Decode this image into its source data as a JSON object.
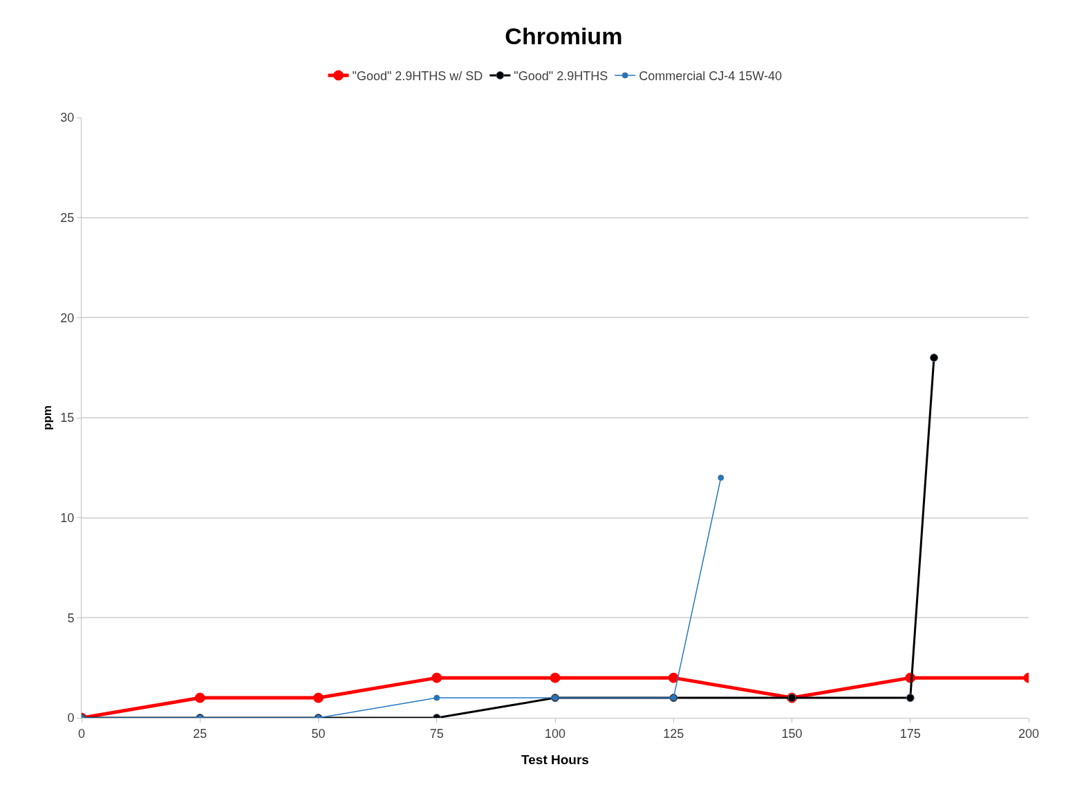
{
  "chart_data": {
    "type": "line",
    "title": "Chromium",
    "xlabel": "Test Hours",
    "ylabel": "ppm",
    "xlim": [
      0,
      200
    ],
    "xticks": [
      0,
      25,
      50,
      75,
      100,
      125,
      150,
      175,
      200
    ],
    "ylim": [
      0,
      30
    ],
    "yticks": [
      0,
      5,
      10,
      15,
      20,
      25,
      30
    ],
    "grid": "y",
    "legend": "top",
    "marker": "circle",
    "line_style": "solid",
    "series": [
      {
        "name": "\"Good\" 2.9HTHS w/ SD",
        "color": "#ff0000",
        "x": [
          0,
          25,
          50,
          75,
          100,
          125,
          150,
          175,
          200
        ],
        "values": [
          0,
          1,
          1,
          2,
          2,
          2,
          1,
          2,
          2
        ]
      },
      {
        "name": "\"Good\" 2.9HTHS",
        "color": "#000000",
        "x": [
          0,
          25,
          50,
          75,
          100,
          125,
          150,
          175,
          180
        ],
        "values": [
          0,
          0,
          0,
          0,
          1,
          1,
          1,
          1,
          18
        ]
      },
      {
        "name": "Commercial CJ-4 15W-40",
        "color": "#1f77c4",
        "x": [
          0,
          25,
          50,
          75,
          100,
          125,
          135
        ],
        "values": [
          0,
          0,
          0,
          1,
          1,
          1,
          12
        ]
      }
    ]
  }
}
